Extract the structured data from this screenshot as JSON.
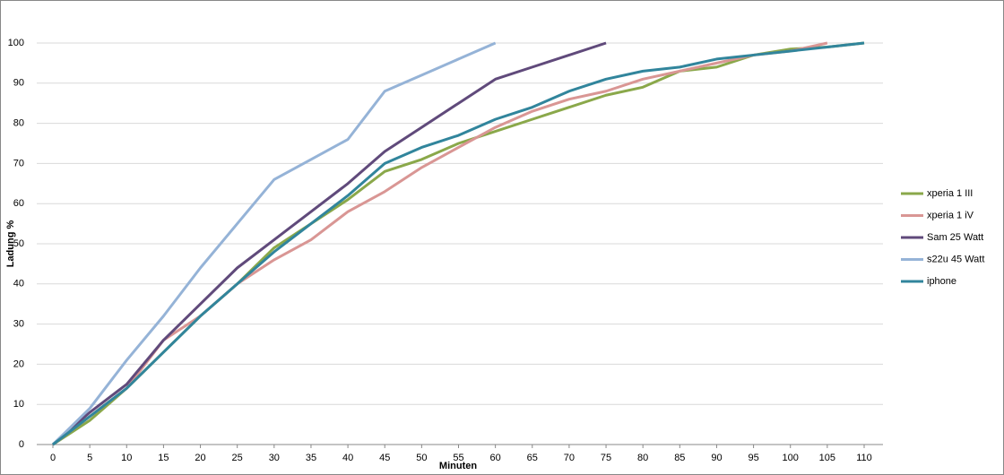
{
  "chart_data": {
    "type": "line",
    "x_label": "Minuten",
    "y_label": "Ladung %",
    "x": [
      0,
      5,
      10,
      15,
      20,
      25,
      30,
      35,
      40,
      45,
      50,
      55,
      60,
      65,
      70,
      75,
      80,
      85,
      90,
      95,
      100,
      105,
      110
    ],
    "xlim": [
      0,
      110
    ],
    "xticks": [
      0,
      5,
      10,
      15,
      20,
      25,
      30,
      35,
      40,
      45,
      50,
      55,
      60,
      65,
      70,
      75,
      80,
      85,
      90,
      95,
      100,
      105,
      110
    ],
    "ylim": [
      0,
      100
    ],
    "yticks": [
      0,
      10,
      20,
      30,
      40,
      50,
      60,
      70,
      80,
      90,
      100
    ],
    "grid": true,
    "legend": "right",
    "series": [
      {
        "name": "xperia 1 III",
        "color": "#8aa84a",
        "values": [
          0,
          6,
          14,
          23,
          32,
          40,
          49,
          55,
          61,
          68,
          71,
          75,
          78,
          81,
          84,
          87,
          89,
          93,
          94,
          97,
          98.5,
          99,
          100
        ]
      },
      {
        "name": "xperia 1 iV",
        "color": "#d99694",
        "values": [
          0,
          7,
          14,
          26,
          32,
          40,
          46,
          51,
          58,
          63,
          69,
          74,
          79,
          83,
          86,
          88,
          91,
          93,
          95,
          97,
          98,
          100,
          null
        ]
      },
      {
        "name": "Sam 25 Watt",
        "color": "#604a7b",
        "values": [
          0,
          8,
          15,
          26,
          35,
          44,
          51,
          58,
          65,
          73,
          79,
          85,
          91,
          94,
          97,
          100,
          null,
          null,
          null,
          null,
          null,
          null,
          null
        ]
      },
      {
        "name": "s22u 45 Watt",
        "color": "#95b3d7",
        "values": [
          0,
          9,
          21,
          32,
          44,
          55,
          66,
          71,
          76,
          88,
          92,
          96,
          100,
          null,
          null,
          null,
          null,
          null,
          null,
          null,
          null,
          null,
          null
        ]
      },
      {
        "name": "iphone",
        "color": "#31859c",
        "values": [
          0,
          7,
          14,
          23,
          32,
          40,
          48,
          55,
          62,
          70,
          74,
          77,
          81,
          84,
          88,
          91,
          93,
          94,
          96,
          97,
          98,
          99,
          100
        ]
      }
    ]
  }
}
